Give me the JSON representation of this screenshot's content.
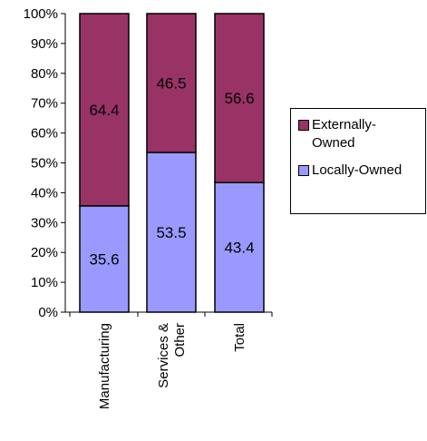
{
  "chart_data": {
    "type": "bar",
    "stacked": true,
    "normalized_percent": true,
    "categories": [
      [
        "Manufacturing"
      ],
      [
        "Services &",
        "Other"
      ],
      [
        "Total"
      ]
    ],
    "series": [
      {
        "name": "Locally-Owned",
        "values": [
          35.6,
          53.5,
          43.4
        ],
        "color": "#9999ff"
      },
      {
        "name": "Externally-Owned",
        "values": [
          64.4,
          46.5,
          56.6
        ],
        "color": "#993366"
      }
    ],
    "y_ticks": [
      "0%",
      "10%",
      "20%",
      "30%",
      "40%",
      "50%",
      "60%",
      "70%",
      "80%",
      "90%",
      "100%"
    ],
    "ylim": [
      0,
      100
    ],
    "grid": false,
    "legend_position": "right",
    "legend": {
      "items": [
        {
          "label_lines": [
            "Externally-",
            "Owned"
          ],
          "color": "#993366"
        },
        {
          "label_lines": [
            "Locally-Owned"
          ],
          "color": "#9999ff"
        }
      ]
    }
  }
}
